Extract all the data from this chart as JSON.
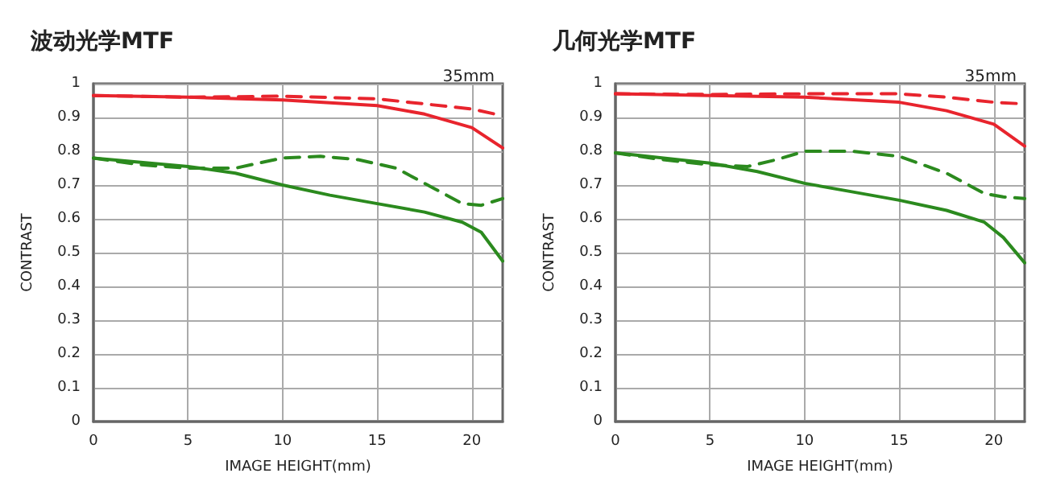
{
  "chart_data": [
    {
      "type": "line",
      "title": "波动光学MTF",
      "subtitle": "35mm",
      "xlabel": "IMAGE HEIGHT(mm)",
      "ylabel": "CONTRAST",
      "xlim": [
        0,
        21.63
      ],
      "ylim": [
        0,
        1
      ],
      "xticks": [
        0,
        5,
        10,
        15,
        20
      ],
      "yticks": [
        0,
        0.1,
        0.2,
        0.3,
        0.4,
        0.5,
        0.6,
        0.7,
        0.8,
        0.9,
        1
      ],
      "grid": true,
      "marker": "none",
      "series": [
        {
          "color": "#e8242d",
          "line_style": "solid",
          "x": [
            0,
            5,
            10,
            15,
            17.5,
            20,
            21.63
          ],
          "values": [
            0.965,
            0.96,
            0.952,
            0.935,
            0.91,
            0.87,
            0.81
          ]
        },
        {
          "color": "#e8242d",
          "line_style": "dashed",
          "x": [
            0,
            5,
            10,
            15,
            17.5,
            20,
            21.63
          ],
          "values": [
            0.965,
            0.96,
            0.963,
            0.955,
            0.94,
            0.925,
            0.905
          ]
        },
        {
          "color": "#2b8a1e",
          "line_style": "solid",
          "x": [
            0,
            5,
            7.5,
            10,
            12.5,
            15,
            17.5,
            19.5,
            20.5,
            21.63
          ],
          "values": [
            0.78,
            0.755,
            0.735,
            0.7,
            0.67,
            0.645,
            0.62,
            0.59,
            0.56,
            0.475
          ]
        },
        {
          "color": "#2b8a1e",
          "line_style": "dashed",
          "x": [
            0,
            2.5,
            5,
            7.5,
            10,
            12,
            14,
            16,
            18,
            19.5,
            20.5,
            21.63
          ],
          "values": [
            0.78,
            0.76,
            0.75,
            0.75,
            0.78,
            0.785,
            0.775,
            0.75,
            0.69,
            0.645,
            0.64,
            0.66
          ]
        }
      ]
    },
    {
      "type": "line",
      "title": "几何光学MTF",
      "subtitle": "35mm",
      "xlabel": "IMAGE HEIGHT(mm)",
      "ylabel": "CONTRAST",
      "xlim": [
        0,
        21.63
      ],
      "ylim": [
        0,
        1
      ],
      "xticks": [
        0,
        5,
        10,
        15,
        20
      ],
      "yticks": [
        0,
        0.1,
        0.2,
        0.3,
        0.4,
        0.5,
        0.6,
        0.7,
        0.8,
        0.9,
        1
      ],
      "grid": true,
      "marker": "none",
      "series": [
        {
          "color": "#e8242d",
          "line_style": "solid",
          "x": [
            0,
            5,
            10,
            15,
            17.5,
            20,
            21.63
          ],
          "values": [
            0.97,
            0.965,
            0.96,
            0.945,
            0.92,
            0.88,
            0.815
          ]
        },
        {
          "color": "#e8242d",
          "line_style": "dashed",
          "x": [
            0,
            5,
            10,
            15,
            17.5,
            20,
            21.63
          ],
          "values": [
            0.97,
            0.968,
            0.97,
            0.97,
            0.96,
            0.945,
            0.94
          ]
        },
        {
          "color": "#2b8a1e",
          "line_style": "solid",
          "x": [
            0,
            5,
            7.5,
            10,
            12.5,
            15,
            17.5,
            19.5,
            20.5,
            21.63
          ],
          "values": [
            0.795,
            0.765,
            0.74,
            0.705,
            0.68,
            0.655,
            0.625,
            0.59,
            0.545,
            0.47
          ]
        },
        {
          "color": "#2b8a1e",
          "line_style": "dashed",
          "x": [
            0,
            2.5,
            5,
            7,
            8.5,
            10,
            12.5,
            15,
            17.5,
            19.5,
            20.5,
            21.63
          ],
          "values": [
            0.795,
            0.775,
            0.76,
            0.755,
            0.775,
            0.8,
            0.8,
            0.785,
            0.735,
            0.675,
            0.665,
            0.66
          ]
        }
      ]
    }
  ]
}
